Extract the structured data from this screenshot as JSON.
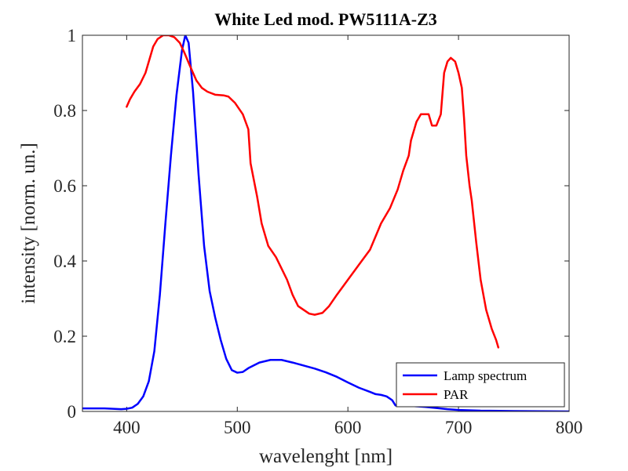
{
  "chart_data": {
    "type": "line",
    "title": "White Led mod. PW5111A-Z3",
    "xlabel": "wavelenght [nm]",
    "ylabel": "intensity [norm. un.]",
    "xlim": [
      360,
      800
    ],
    "ylim": [
      0,
      1
    ],
    "xticks": [
      400,
      500,
      600,
      700,
      800
    ],
    "yticks": [
      0,
      0.2,
      0.4,
      0.6,
      0.8,
      1
    ],
    "ytick_labels": [
      "0",
      "0.2",
      "0.4",
      "0.6",
      "0.8",
      "1"
    ],
    "grid": false,
    "legend_position": "bottom-right",
    "series": [
      {
        "name": "Lamp spectrum",
        "color": "#0000ff",
        "points": [
          [
            360,
            0.008
          ],
          [
            380,
            0.008
          ],
          [
            395,
            0.006
          ],
          [
            400,
            0.007
          ],
          [
            405,
            0.01
          ],
          [
            410,
            0.02
          ],
          [
            415,
            0.04
          ],
          [
            420,
            0.08
          ],
          [
            425,
            0.16
          ],
          [
            430,
            0.31
          ],
          [
            435,
            0.5
          ],
          [
            440,
            0.68
          ],
          [
            445,
            0.84
          ],
          [
            450,
            0.96
          ],
          [
            453,
            1.0
          ],
          [
            456,
            0.98
          ],
          [
            460,
            0.85
          ],
          [
            465,
            0.63
          ],
          [
            470,
            0.44
          ],
          [
            475,
            0.32
          ],
          [
            480,
            0.25
          ],
          [
            485,
            0.19
          ],
          [
            490,
            0.14
          ],
          [
            495,
            0.11
          ],
          [
            500,
            0.103
          ],
          [
            505,
            0.105
          ],
          [
            510,
            0.115
          ],
          [
            520,
            0.13
          ],
          [
            530,
            0.137
          ],
          [
            540,
            0.137
          ],
          [
            550,
            0.13
          ],
          [
            560,
            0.122
          ],
          [
            570,
            0.114
          ],
          [
            580,
            0.104
          ],
          [
            590,
            0.092
          ],
          [
            600,
            0.077
          ],
          [
            610,
            0.063
          ],
          [
            620,
            0.052
          ],
          [
            625,
            0.046
          ],
          [
            630,
            0.044
          ],
          [
            635,
            0.04
          ],
          [
            640,
            0.03
          ],
          [
            643,
            0.016
          ],
          [
            650,
            0.015
          ],
          [
            660,
            0.014
          ],
          [
            670,
            0.012
          ],
          [
            680,
            0.009
          ],
          [
            690,
            0.006
          ],
          [
            700,
            0.004
          ],
          [
            720,
            0.002
          ],
          [
            750,
            0.001
          ],
          [
            800,
            0.0
          ]
        ]
      },
      {
        "name": "PAR",
        "color": "#ff0000",
        "points": [
          [
            400,
            0.81
          ],
          [
            403,
            0.83
          ],
          [
            407,
            0.85
          ],
          [
            412,
            0.87
          ],
          [
            417,
            0.9
          ],
          [
            420,
            0.93
          ],
          [
            424,
            0.97
          ],
          [
            428,
            0.99
          ],
          [
            433,
            1.0
          ],
          [
            438,
            1.0
          ],
          [
            443,
            0.995
          ],
          [
            448,
            0.98
          ],
          [
            452,
            0.955
          ],
          [
            457,
            0.92
          ],
          [
            463,
            0.88
          ],
          [
            468,
            0.86
          ],
          [
            473,
            0.85
          ],
          [
            480,
            0.842
          ],
          [
            488,
            0.84
          ],
          [
            492,
            0.837
          ],
          [
            498,
            0.82
          ],
          [
            505,
            0.79
          ],
          [
            510,
            0.75
          ],
          [
            512,
            0.66
          ],
          [
            518,
            0.57
          ],
          [
            522,
            0.5
          ],
          [
            528,
            0.44
          ],
          [
            535,
            0.41
          ],
          [
            540,
            0.38
          ],
          [
            545,
            0.35
          ],
          [
            550,
            0.31
          ],
          [
            555,
            0.28
          ],
          [
            565,
            0.26
          ],
          [
            570,
            0.257
          ],
          [
            577,
            0.262
          ],
          [
            583,
            0.28
          ],
          [
            590,
            0.31
          ],
          [
            600,
            0.35
          ],
          [
            610,
            0.39
          ],
          [
            620,
            0.43
          ],
          [
            630,
            0.5
          ],
          [
            638,
            0.54
          ],
          [
            645,
            0.59
          ],
          [
            650,
            0.64
          ],
          [
            655,
            0.68
          ],
          [
            657,
            0.72
          ],
          [
            662,
            0.77
          ],
          [
            666,
            0.79
          ],
          [
            673,
            0.79
          ],
          [
            676,
            0.76
          ],
          [
            680,
            0.76
          ],
          [
            684,
            0.79
          ],
          [
            687,
            0.9
          ],
          [
            690,
            0.93
          ],
          [
            693,
            0.94
          ],
          [
            697,
            0.93
          ],
          [
            700,
            0.9
          ],
          [
            703,
            0.86
          ],
          [
            705,
            0.78
          ],
          [
            707,
            0.68
          ],
          [
            710,
            0.6
          ],
          [
            712,
            0.56
          ],
          [
            716,
            0.45
          ],
          [
            720,
            0.35
          ],
          [
            725,
            0.27
          ],
          [
            730,
            0.22
          ],
          [
            734,
            0.19
          ],
          [
            736,
            0.17
          ]
        ]
      }
    ]
  }
}
